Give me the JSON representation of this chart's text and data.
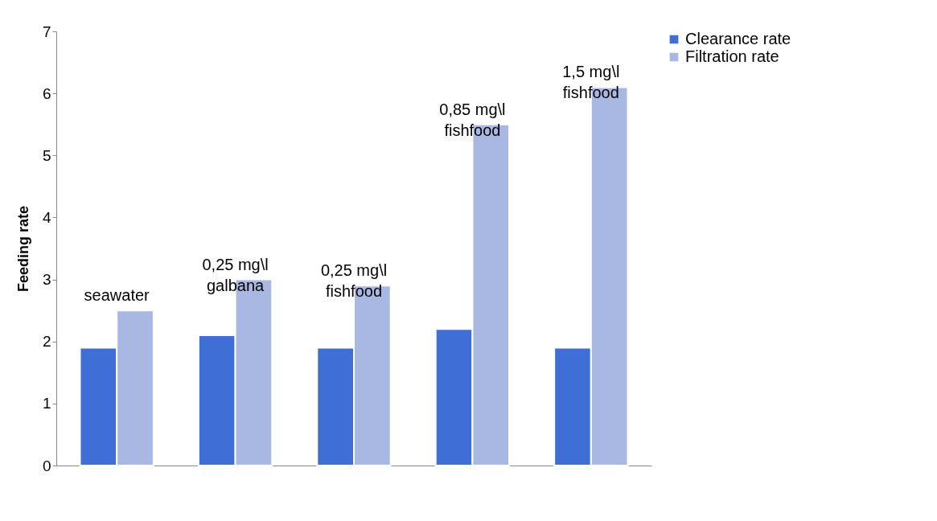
{
  "chart_data": {
    "type": "bar",
    "ylabel": "Feeding rate",
    "categories": [
      "seawater",
      "0,25 mg\\l\ngalbana",
      "0,25 mg\\l\nfishfood",
      "0,85 mg\\l\nfishfood",
      "1,5 mg\\l\nfishfood"
    ],
    "series": [
      {
        "name": "Clearance rate",
        "color": "#3f6fd6",
        "values": [
          1.9,
          2.1,
          1.9,
          2.2,
          1.9
        ]
      },
      {
        "name": "Filtration rate",
        "color": "#a8b8e2",
        "values": [
          2.5,
          3.0,
          2.9,
          5.5,
          6.1
        ]
      }
    ],
    "ylim": [
      0,
      7
    ],
    "yticks": [
      0,
      1,
      2,
      3,
      4,
      5,
      6,
      7
    ],
    "grid": false,
    "legend": "right"
  }
}
